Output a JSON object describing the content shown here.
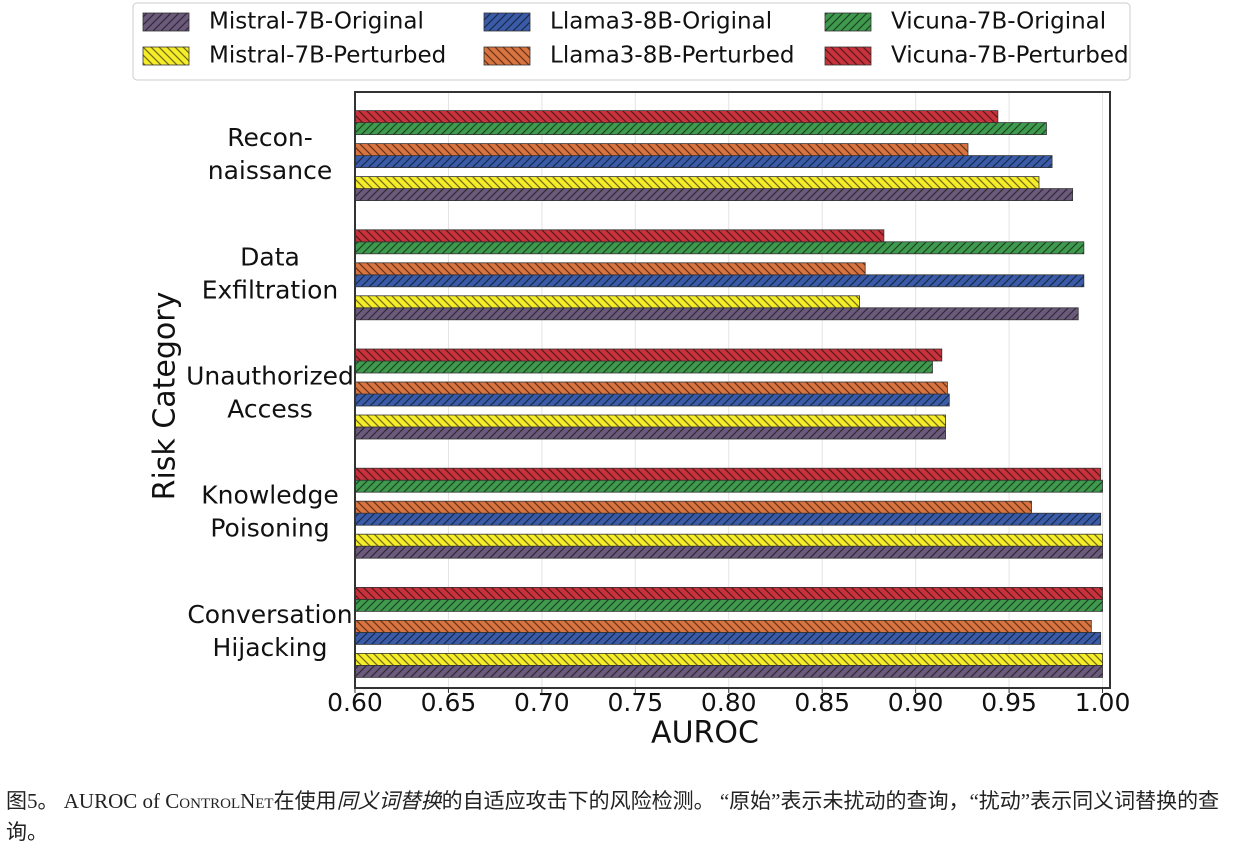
{
  "chart_data": {
    "type": "barh",
    "xlabel": "AUROC",
    "ylabel": "Risk Category",
    "categories": [
      "Recon-\nnaissance",
      "Data\nExfiltration",
      "Unauthorized\nAccess",
      "Knowledge\nPoisoning",
      "Conversation\nHijacking"
    ],
    "series": [
      {
        "name": "Mistral-7B-Original",
        "color": "#6b5a7b",
        "hatch": "/",
        "values": [
          0.984,
          0.987,
          0.916,
          1.0,
          1.0
        ]
      },
      {
        "name": "Mistral-7B-Perturbed",
        "color": "#f5ec2a",
        "hatch": "\\",
        "values": [
          0.966,
          0.87,
          0.916,
          1.0,
          1.0
        ]
      },
      {
        "name": "Llama3-8B-Original",
        "color": "#3a5ca8",
        "hatch": "/",
        "values": [
          0.973,
          0.99,
          0.918,
          0.999,
          0.999
        ]
      },
      {
        "name": "Llama3-8B-Perturbed",
        "color": "#d9733f",
        "hatch": "\\",
        "values": [
          0.928,
          0.873,
          0.917,
          0.962,
          0.994
        ]
      },
      {
        "name": "Vicuna-7B-Original",
        "color": "#3f9a4e",
        "hatch": "/",
        "values": [
          0.97,
          0.99,
          0.909,
          1.0,
          1.0
        ]
      },
      {
        "name": "Vicuna-7B-Perturbed",
        "color": "#c8323c",
        "hatch": "\\",
        "values": [
          0.944,
          0.883,
          0.914,
          0.999,
          1.0
        ]
      }
    ],
    "xlim": [
      0.6,
      1.004
    ],
    "xticks": [
      {
        "value": 0.6,
        "label": "0.60"
      },
      0.65,
      {
        "value": 0.7,
        "label": "0.70"
      },
      0.75,
      {
        "value": 0.8,
        "label": "0.80"
      },
      0.85,
      {
        "value": 0.9,
        "label": "0.90"
      },
      0.95,
      {
        "value": 1.0,
        "label": "1.00"
      }
    ],
    "grid": true,
    "legend": "top"
  },
  "caption": {
    "figure": "图5。",
    "pre": " AUROC of ",
    "name": "ControlNet",
    "mid": "在使用",
    "italic": "同义词替换",
    "post": "的自适应攻击下的风险检测。 “原始”表示未扰动的查询，“扰动”表示同义词替换的查询。"
  }
}
